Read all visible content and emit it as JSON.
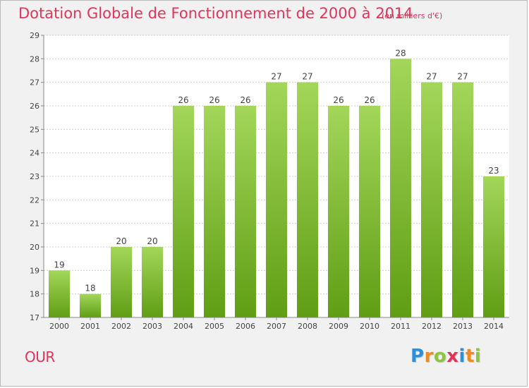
{
  "header": {
    "title": "Dotation Globale de Fonctionnement de 2000 à 2014",
    "subtitle": "(en milliers d'€)"
  },
  "footer": {
    "commune": "OUR",
    "logo_text": "Proxiti"
  },
  "colors": {
    "title": "#e0345a",
    "bar_top": "#a3d65a",
    "bar_bottom": "#5f9e14",
    "background": "#f1f1f1",
    "plot_background": "#ffffff",
    "grid": "#d0d0d0"
  },
  "chart_data": {
    "type": "bar",
    "title": "Dotation Globale de Fonctionnement de 2000 à 2014",
    "subtitle": "(en milliers d'€)",
    "xlabel": "",
    "ylabel": "",
    "categories": [
      "2000",
      "2001",
      "2002",
      "2003",
      "2004",
      "2005",
      "2006",
      "2007",
      "2008",
      "2009",
      "2010",
      "2011",
      "2012",
      "2013",
      "2014"
    ],
    "values": [
      19,
      18,
      20,
      20,
      26,
      26,
      26,
      27,
      27,
      26,
      26,
      28,
      27,
      27,
      23
    ],
    "ylim": [
      17,
      29
    ],
    "yticks": [
      17,
      18,
      19,
      20,
      21,
      22,
      23,
      24,
      25,
      26,
      27,
      28,
      29
    ],
    "grid": true,
    "data_labels": true
  }
}
